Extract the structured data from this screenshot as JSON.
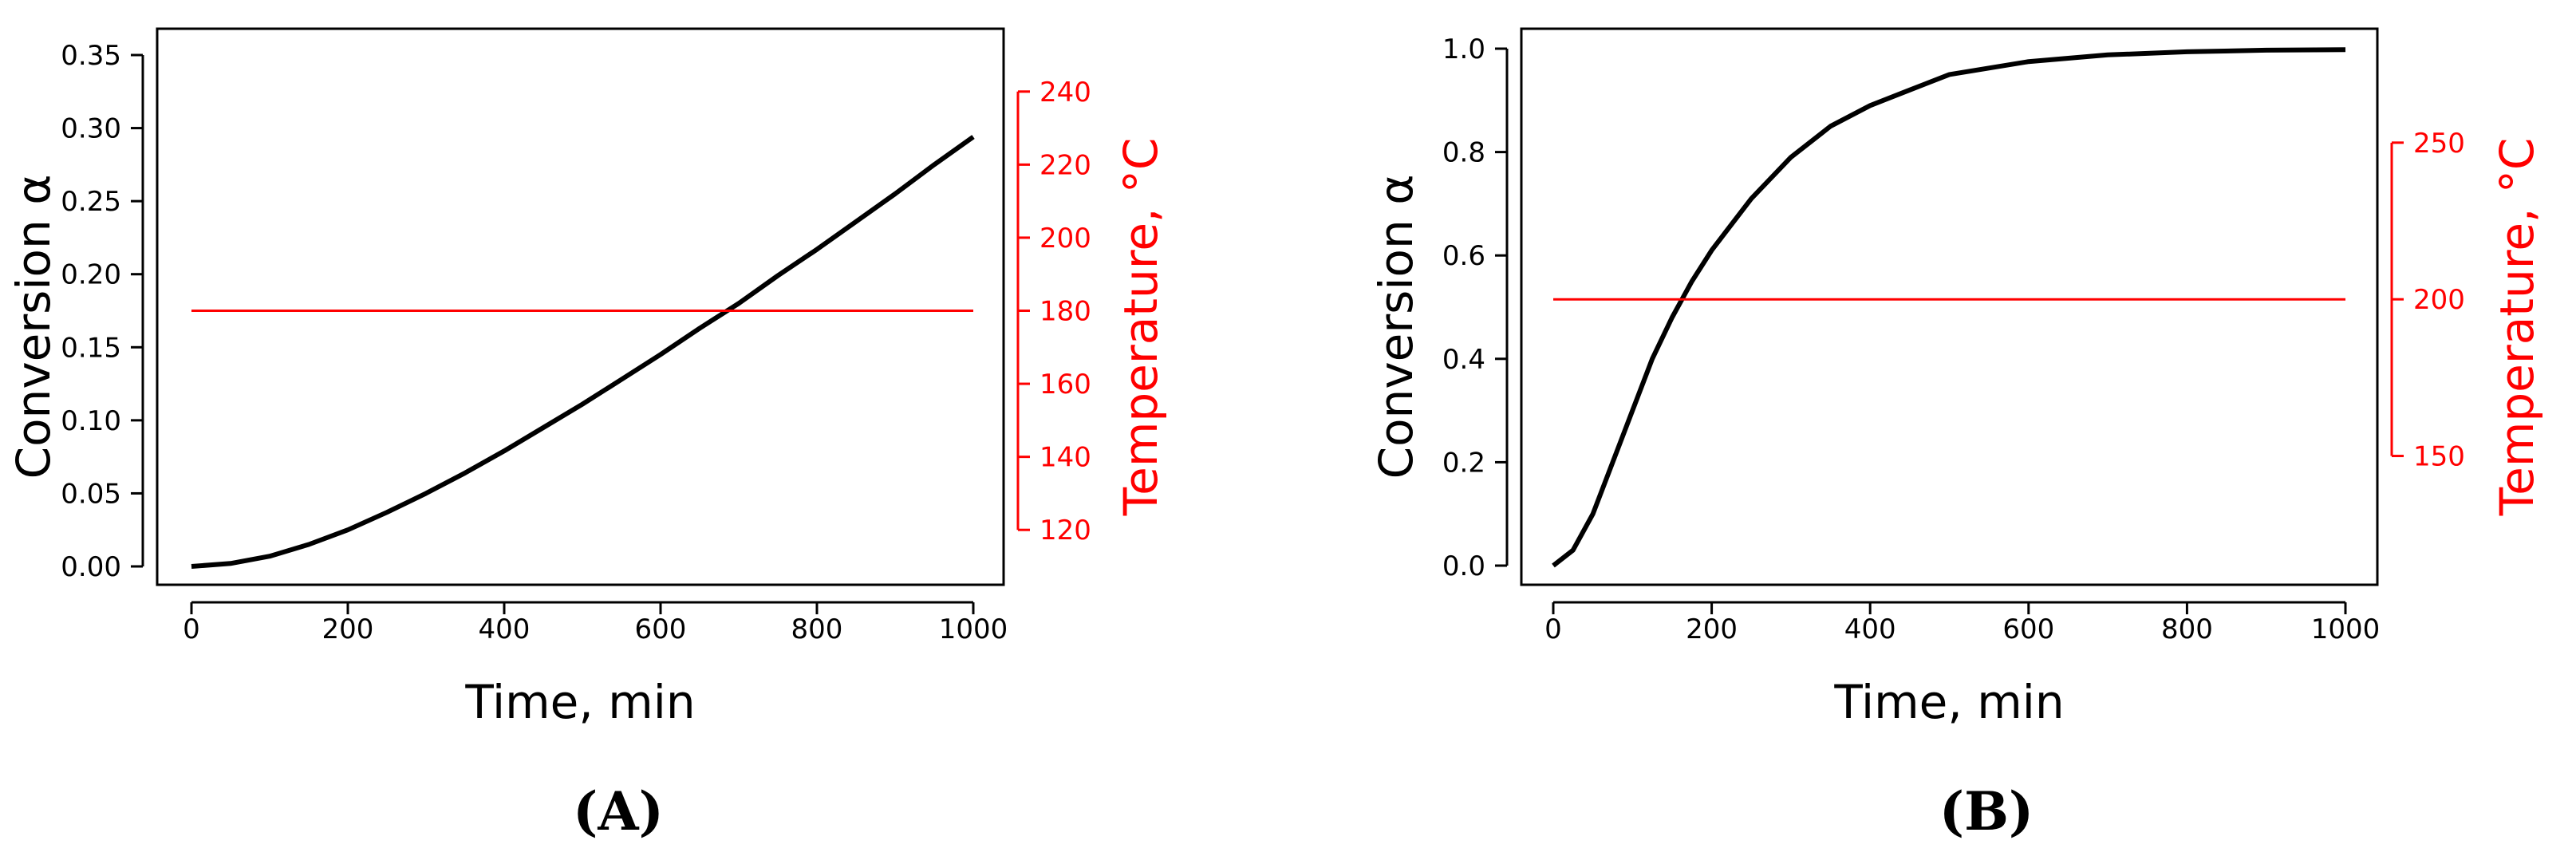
{
  "chart_data": [
    {
      "type": "line",
      "panel_label": "(A)",
      "xlabel": "Time, min",
      "ylabel": "Conversion  α",
      "y2label": "Temperature, °C",
      "xlim": [
        0,
        1000
      ],
      "ylim": [
        0,
        0.35
      ],
      "y2lim": [
        110,
        250
      ],
      "xticks": [
        0,
        200,
        400,
        600,
        800,
        1000
      ],
      "yticks": [
        0.0,
        0.05,
        0.1,
        0.15,
        0.2,
        0.25,
        0.3,
        0.35
      ],
      "ytick_labels": [
        "0.00",
        "0.05",
        "0.10",
        "0.15",
        "0.20",
        "0.25",
        "0.30",
        "0.35"
      ],
      "y2ticks": [
        120,
        140,
        160,
        180,
        200,
        220,
        240
      ],
      "grid": false,
      "series": [
        {
          "axis": "left",
          "color": "#000000",
          "x": [
            0,
            50,
            100,
            150,
            200,
            250,
            300,
            350,
            400,
            450,
            500,
            550,
            600,
            650,
            700,
            750,
            800,
            850,
            900,
            950,
            1000
          ],
          "y": [
            0.0,
            0.002,
            0.007,
            0.015,
            0.025,
            0.037,
            0.05,
            0.064,
            0.079,
            0.095,
            0.111,
            0.128,
            0.145,
            0.163,
            0.18,
            0.199,
            0.217,
            0.236,
            0.255,
            0.275,
            0.294
          ]
        },
        {
          "axis": "right",
          "color": "#ff0000",
          "x": [
            0,
            1000
          ],
          "y": [
            180,
            180
          ]
        }
      ]
    },
    {
      "type": "line",
      "panel_label": "(B)",
      "xlabel": "Time, min",
      "ylabel": "Conversion  α",
      "y2label": "Temperature, °C",
      "xlim": [
        0,
        1000
      ],
      "ylim": [
        0,
        1.0
      ],
      "y2lim": [
        115,
        280
      ],
      "xticks": [
        0,
        200,
        400,
        600,
        800,
        1000
      ],
      "yticks": [
        0.0,
        0.2,
        0.4,
        0.6,
        0.8,
        1.0
      ],
      "ytick_labels": [
        "0.0",
        "0.2",
        "0.4",
        "0.6",
        "0.8",
        "1.0"
      ],
      "y2ticks": [
        150,
        200,
        250
      ],
      "grid": false,
      "series": [
        {
          "axis": "left",
          "color": "#000000",
          "x": [
            0,
            25,
            50,
            75,
            100,
            125,
            150,
            175,
            200,
            250,
            300,
            350,
            400,
            450,
            500,
            600,
            700,
            800,
            900,
            1000
          ],
          "y": [
            0.0,
            0.03,
            0.1,
            0.2,
            0.3,
            0.4,
            0.48,
            0.55,
            0.61,
            0.71,
            0.79,
            0.85,
            0.89,
            0.92,
            0.95,
            0.975,
            0.988,
            0.994,
            0.997,
            0.998
          ]
        },
        {
          "axis": "right",
          "color": "#ff0000",
          "x": [
            0,
            1000
          ],
          "y": [
            200,
            200
          ]
        }
      ]
    }
  ]
}
